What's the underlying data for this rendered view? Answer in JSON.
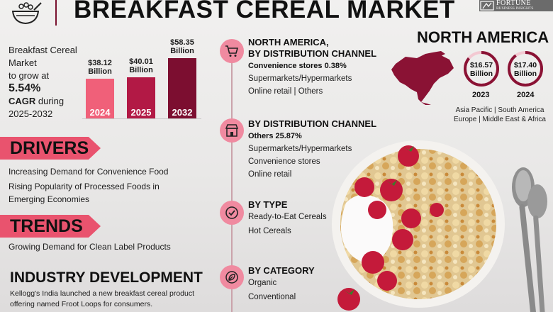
{
  "header": {
    "title": "BREAKFAST CEREAL MARKET",
    "brand_name": "FORTUNE",
    "brand_sub": "BUSINESS INSIGHTS"
  },
  "growth": {
    "line1": "Breakfast Cereal",
    "line2": "Market",
    "line3": "to grow at",
    "rate": "5.54%",
    "cagr": "CAGR",
    "during": "during",
    "period": "2025-2032"
  },
  "chart_data": {
    "type": "bar",
    "categories": [
      "2024",
      "2025",
      "2032"
    ],
    "values": [
      38.12,
      40.01,
      58.35
    ],
    "value_labels": [
      [
        "$38.12",
        "Billion"
      ],
      [
        "$40.01",
        "Billion"
      ],
      [
        "$58.35",
        "Billion"
      ]
    ],
    "colors": [
      "#f06079",
      "#b21945",
      "#7c0e30"
    ]
  },
  "drivers": {
    "title": "DRIVERS",
    "items": [
      "Increasing Demand for Convenience Food",
      "Rising Popularity of Processed Foods in",
      "Emerging Economies"
    ]
  },
  "trends": {
    "title": "TRENDS",
    "items": [
      "Growing Demand for Clean Label Products"
    ]
  },
  "industry": {
    "title": "INDUSTRY DEVELOPMENT",
    "lines": [
      "Kellogg's India launched a new breakfast cereal product",
      "offering named Froot Loops for consumers."
    ]
  },
  "segments": [
    {
      "icon": "shopping-cart-icon",
      "head": [
        "NORTH AMERICA,",
        "BY DISTRIBUTION CHANNEL"
      ],
      "highlight": "Convenience stores 0.38%",
      "items": [
        "Supermarkets/Hypermarkets",
        "Online retail  |  Others"
      ]
    },
    {
      "icon": "store-icon",
      "head": [
        "BY DISTRIBUTION CHANNEL"
      ],
      "highlight": "Others 25.87%",
      "items": [
        "Supermarkets/Hypermarkets",
        "Convenience stores",
        "Online retail"
      ]
    },
    {
      "icon": "check-badge-icon",
      "head": [
        "BY TYPE"
      ],
      "highlight": "",
      "items": [
        "Ready-to-Eat Cereals",
        "Hot Cereals"
      ]
    },
    {
      "icon": "leaf-icon",
      "head": [
        "BY CATEGORY"
      ],
      "highlight": "",
      "items": [
        "Organic",
        "Conventional"
      ]
    }
  ],
  "region": {
    "title": "NORTH AMERICA",
    "donuts": [
      {
        "value": "$16.57",
        "unit": "Billion",
        "year": "2023",
        "fill": 0.86
      },
      {
        "value": "$17.40",
        "unit": "Billion",
        "year": "2024",
        "fill": 0.9
      }
    ],
    "others_line1": "Asia Pacific  |  South America",
    "others_line2": "Europe  |  Middle East & Africa"
  },
  "colors": {
    "accent_pink": "#e9536e",
    "maroon": "#8a1234",
    "icon_circle": "#f08aa0"
  }
}
